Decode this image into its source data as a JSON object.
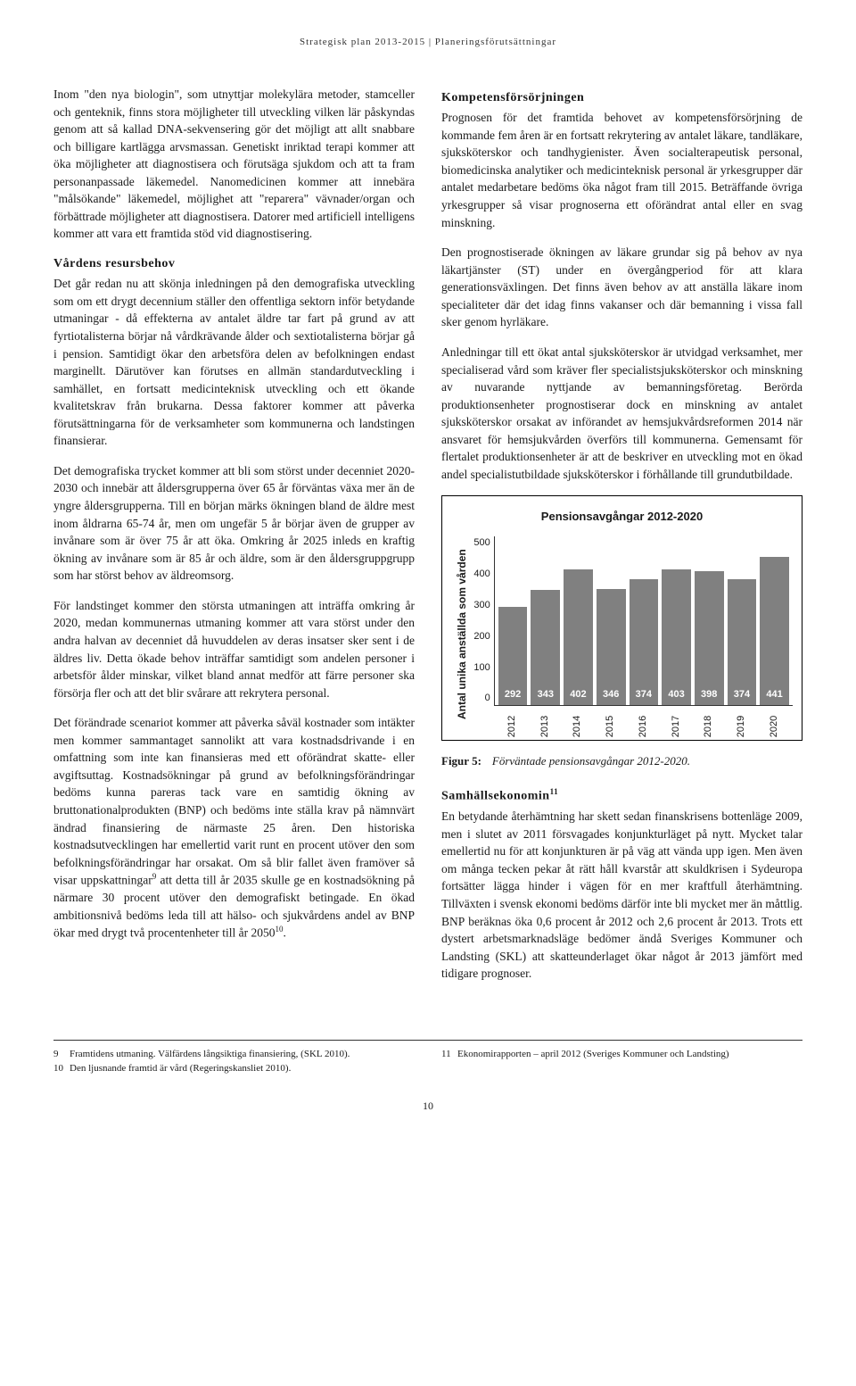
{
  "header": {
    "left": "Strategisk plan 2013-2015",
    "sep": " | ",
    "right": "Planeringsförutsättningar"
  },
  "left_column": {
    "p1": "Inom \"den nya biologin\", som utnyttjar molekylära metoder, stamceller och genteknik, finns stora möjligheter till utveckling vilken lär påskyndas genom att så kallad DNA-sekvensering gör det möjligt att allt snabbare och billigare kartlägga arvsmassan. Genetiskt inriktad terapi kommer att öka möjligheter att diagnostisera och förutsäga sjukdom och att ta fram personanpassade läkemedel. Nanomedicinen kommer att innebära \"målsökande\" läkemedel, möjlighet att \"reparera\" vävnader/organ och förbättrade möjligheter att diagnostisera. Datorer med artificiell intelligens kommer att vara ett framtida stöd vid diagnostisering.",
    "h1": "Vårdens resursbehov",
    "p2": "Det går redan nu att skönja inledningen på den demografiska utveckling som om ett drygt decennium ställer den offentliga sektorn inför betydande utmaningar - då effekterna av antalet äldre tar fart på grund av att fyrtiotalisterna börjar nå vårdkrävande ålder och sextiotalisterna börjar gå i pension. Samtidigt ökar den arbetsföra delen av befolkningen endast marginellt. Därutöver kan förutses en allmän standardutveckling i samhället, en fortsatt medicinteknisk utveckling och ett ökande kvalitetskrav från brukarna. Dessa faktorer kommer att påverka förutsättningarna för de verksamheter som kommunerna och landstingen finansierar.",
    "p3": "Det demografiska trycket kommer att bli som störst under decenniet 2020-2030 och innebär att åldersgrupperna över 65 år förväntas växa mer än de yngre åldersgrupperna. Till en början märks ökningen bland de äldre mest inom åldrarna 65-74 år, men om ungefär 5 år börjar även de grupper av invånare som är över 75 år att öka. Omkring år 2025 inleds en kraftig ökning av invånare som är 85 år och äldre, som är den åldersgruppgrupp som har störst behov av äldreomsorg.",
    "p4": "För landstinget kommer den största utmaningen att inträffa omkring år 2020, medan kommunernas utmaning kommer att vara störst under den andra halvan av decenniet då huvuddelen av deras insatser sker sent i de äldres liv. Detta ökade behov inträffar samtidigt som andelen personer i arbetsför ålder minskar, vilket bland annat medför att färre personer ska försörja fler och att det blir svårare att rekrytera personal.",
    "p5_a": "Det förändrade scenariot kommer att påverka såväl kostnader som intäkter men kommer sammantaget sannolikt att vara kostnadsdrivande i en omfattning som inte kan finansieras med ett oförändrat skatte- eller avgiftsuttag. Kostnadsökningar på grund av befolkningsförändringar bedöms kunna pareras tack vare en samtidig ökning av bruttonationalprodukten (BNP) och bedöms inte ställa krav på nämnvärt ändrad finansiering de närmaste 25 åren. Den historiska kostnadsutvecklingen har emellertid varit runt en procent utöver den som befolkningsförändringar har orsakat. Om så blir fallet även framöver så visar uppskattningar",
    "sup9": "9",
    "p5_b": " att detta till år 2035 skulle ge en kostnadsökning på närmare 30 procent utöver den demografiskt betingade. En ökad ambitionsnivå bedöms leda till att hälso- och sjukvårdens andel av BNP ökar med drygt två procentenheter till år 2050",
    "sup10": "10",
    "p5_c": "."
  },
  "right_column": {
    "h1": "Kompetensförsörjningen",
    "p1": "Prognosen för det framtida behovet av kompetensförsörjning de kommande fem åren är en fortsatt rekrytering av antalet läkare, tandläkare, sjuksköterskor och tandhygienister. Även socialterapeutisk personal, biomedicinska analytiker och medicinteknisk personal är yrkesgrupper där antalet medarbetare bedöms öka något fram till 2015. Beträffande övriga yrkesgrupper så visar prognoserna ett oförändrat antal eller en svag minskning.",
    "p2": "Den prognostiserade ökningen av läkare grundar sig på behov av nya läkartjänster (ST) under en övergångperiod för att klara generationsväxlingen. Det finns även behov av att anställa läkare inom specialiteter där det idag finns vakanser och där bemanning i vissa fall sker genom hyrläkare.",
    "p3": "Anledningar till ett ökat antal sjuksköterskor är utvidgad verksamhet, mer specialiserad vård som kräver fler specialistsjuksköterskor och minskning av nuvarande nyttjande av bemanningsföretag. Berörda produktionsenheter prognostiserar dock en minskning av antalet sjuksköterskor orsakat av införandet av hemsjukvårdsreformen 2014 när ansvaret för hemsjukvården överförs till kommunerna. Gemensamt för flertalet produktionsenheter är att de beskriver en utveckling mot en ökad andel specialistutbildade sjuksköterskor i förhållande till grundutbildade.",
    "h2_a": "Samhällsekonomin",
    "sup11": "11",
    "p4": "En betydande återhämtning har skett sedan finanskrisens bottenläge 2009, men i slutet av 2011 försvagades konjunkturläget på nytt. Mycket talar emellertid nu för att konjunkturen är på väg att vända upp igen. Men även om många tecken pekar åt rätt håll kvarstår att skuldkrisen i Sydeuropa fortsätter lägga hinder i vägen för en mer kraftfull återhämtning. Tillväxten i svensk ekonomi bedöms därför inte bli mycket mer än måttlig. BNP beräknas öka 0,6 procent år 2012 och 2,6 procent år 2013. Trots ett dystert arbetsmarknadsläge bedömer ändå Sveriges Kommuner och Landsting (SKL) att skatteunderlaget ökar något år 2013 jämfört med tidigare prognoser."
  },
  "chart": {
    "title": "Pensionsavgångar 2012-2020",
    "y_label": "Antal unika anställda som vården",
    "y_ticks": [
      "500",
      "400",
      "300",
      "200",
      "100",
      "0"
    ],
    "y_max": 500,
    "bar_color": "#808080",
    "value_color": "#ffffff",
    "categories": [
      "2012",
      "2013",
      "2014",
      "2015",
      "2016",
      "2017",
      "2018",
      "2019",
      "2020"
    ],
    "values": [
      292,
      343,
      402,
      346,
      374,
      403,
      398,
      374,
      441
    ]
  },
  "fig_caption": {
    "label": "Figur 5:",
    "text": "Förväntade pensionsavgångar 2012-2020."
  },
  "footnotes": {
    "left": [
      {
        "n": "9",
        "t": "Framtidens utmaning. Välfärdens långsiktiga finansiering, (SKL 2010)."
      },
      {
        "n": "10",
        "t": "Den ljusnande framtid är vård (Regeringskansliet 2010)."
      }
    ],
    "right": [
      {
        "n": "11",
        "t": "Ekonomirapporten – april 2012 (Sveriges Kommuner och Landsting)"
      }
    ]
  },
  "page_number": "10"
}
